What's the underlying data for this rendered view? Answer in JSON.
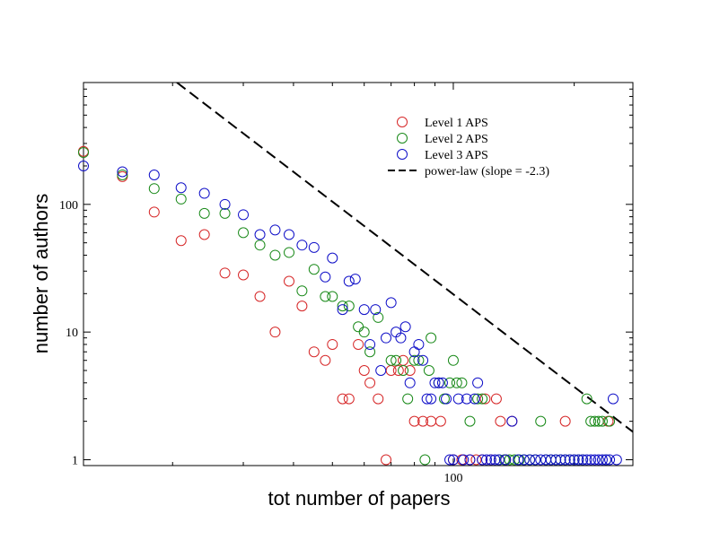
{
  "chart_data": {
    "type": "scatter",
    "xlabel": "tot number of papers",
    "ylabel": "number of authors",
    "xscale": "log",
    "yscale": "log",
    "xlim": [
      12,
      280
    ],
    "ylim": [
      0.9,
      900
    ],
    "xticks": [
      {
        "value": 100,
        "label": "100"
      }
    ],
    "yticks": [
      {
        "value": 1,
        "label": "1"
      },
      {
        "value": 10,
        "label": "10"
      },
      {
        "value": 100,
        "label": "100"
      }
    ],
    "legend_position": "top-right",
    "series": [
      {
        "name": "Level 1 APS",
        "color": "#d62728",
        "points": [
          [
            12,
            260
          ],
          [
            15,
            165
          ],
          [
            18,
            87
          ],
          [
            21,
            52
          ],
          [
            24,
            58
          ],
          [
            27,
            29
          ],
          [
            30,
            28
          ],
          [
            33,
            19
          ],
          [
            36,
            10
          ],
          [
            39,
            25
          ],
          [
            42,
            16
          ],
          [
            45,
            7
          ],
          [
            48,
            6
          ],
          [
            50,
            8
          ],
          [
            53,
            3
          ],
          [
            55,
            3
          ],
          [
            58,
            8
          ],
          [
            60,
            5
          ],
          [
            62,
            4
          ],
          [
            65,
            3
          ],
          [
            68,
            1
          ],
          [
            70,
            5
          ],
          [
            73,
            5
          ],
          [
            75,
            6
          ],
          [
            78,
            5
          ],
          [
            80,
            2
          ],
          [
            84,
            2
          ],
          [
            88,
            2
          ],
          [
            93,
            2
          ],
          [
            100,
            1
          ],
          [
            105,
            1
          ],
          [
            110,
            1
          ],
          [
            114,
            1
          ],
          [
            118,
            1
          ],
          [
            120,
            3
          ],
          [
            124,
            1
          ],
          [
            128,
            3
          ],
          [
            131,
            2
          ],
          [
            135,
            1
          ],
          [
            140,
            2
          ],
          [
            190,
            2
          ],
          [
            243,
            2
          ]
        ]
      },
      {
        "name": "Level 2 APS",
        "color": "#1a8a1a",
        "points": [
          [
            12,
            255
          ],
          [
            15,
            170
          ],
          [
            18,
            133
          ],
          [
            21,
            110
          ],
          [
            24,
            85
          ],
          [
            27,
            85
          ],
          [
            30,
            60
          ],
          [
            33,
            48
          ],
          [
            36,
            40
          ],
          [
            39,
            42
          ],
          [
            42,
            21
          ],
          [
            45,
            31
          ],
          [
            48,
            19
          ],
          [
            50,
            19
          ],
          [
            53,
            16
          ],
          [
            55,
            16
          ],
          [
            58,
            11
          ],
          [
            60,
            10
          ],
          [
            62,
            7
          ],
          [
            65,
            13
          ],
          [
            70,
            6
          ],
          [
            72,
            6
          ],
          [
            75,
            5
          ],
          [
            77,
            3
          ],
          [
            80,
            6
          ],
          [
            82,
            6
          ],
          [
            85,
            1
          ],
          [
            87,
            5
          ],
          [
            88,
            9
          ],
          [
            92,
            4
          ],
          [
            95,
            3
          ],
          [
            98,
            4
          ],
          [
            100,
            6
          ],
          [
            102,
            4
          ],
          [
            105,
            4
          ],
          [
            110,
            2
          ],
          [
            115,
            3
          ],
          [
            118,
            3
          ],
          [
            130,
            1
          ],
          [
            134,
            1
          ],
          [
            138,
            1
          ],
          [
            142,
            1
          ],
          [
            146,
            1
          ],
          [
            150,
            1
          ],
          [
            155,
            1
          ],
          [
            160,
            1
          ],
          [
            165,
            2
          ],
          [
            170,
            1
          ],
          [
            175,
            1
          ],
          [
            180,
            1
          ],
          [
            185,
            1
          ],
          [
            190,
            1
          ],
          [
            195,
            1
          ],
          [
            200,
            1
          ],
          [
            205,
            1
          ],
          [
            210,
            1
          ],
          [
            215,
            3
          ],
          [
            220,
            2
          ],
          [
            225,
            2
          ],
          [
            230,
            2
          ],
          [
            235,
            2
          ],
          [
            240,
            1
          ],
          [
            245,
            2
          ]
        ]
      },
      {
        "name": "Level 3 APS",
        "color": "#1010c8",
        "points": [
          [
            12,
            200
          ],
          [
            15,
            180
          ],
          [
            18,
            170
          ],
          [
            21,
            135
          ],
          [
            24,
            122
          ],
          [
            27,
            100
          ],
          [
            30,
            83
          ],
          [
            33,
            58
          ],
          [
            36,
            63
          ],
          [
            39,
            58
          ],
          [
            42,
            48
          ],
          [
            45,
            46
          ],
          [
            48,
            27
          ],
          [
            50,
            38
          ],
          [
            53,
            15
          ],
          [
            55,
            25
          ],
          [
            57,
            26
          ],
          [
            60,
            15
          ],
          [
            62,
            8
          ],
          [
            64,
            15
          ],
          [
            66,
            5
          ],
          [
            68,
            9
          ],
          [
            70,
            17
          ],
          [
            72,
            10
          ],
          [
            74,
            9
          ],
          [
            76,
            11
          ],
          [
            78,
            4
          ],
          [
            80,
            7
          ],
          [
            82,
            8
          ],
          [
            84,
            6
          ],
          [
            86,
            3
          ],
          [
            88,
            3
          ],
          [
            90,
            4
          ],
          [
            92,
            4
          ],
          [
            94,
            4
          ],
          [
            96,
            3
          ],
          [
            98,
            1
          ],
          [
            100,
            1
          ],
          [
            103,
            3
          ],
          [
            106,
            1
          ],
          [
            108,
            3
          ],
          [
            110,
            1
          ],
          [
            113,
            3
          ],
          [
            115,
            4
          ],
          [
            118,
            1
          ],
          [
            121,
            1
          ],
          [
            124,
            1
          ],
          [
            127,
            1
          ],
          [
            130,
            1
          ],
          [
            135,
            1
          ],
          [
            140,
            2
          ],
          [
            145,
            1
          ],
          [
            150,
            1
          ],
          [
            155,
            1
          ],
          [
            160,
            1
          ],
          [
            165,
            1
          ],
          [
            170,
            1
          ],
          [
            175,
            1
          ],
          [
            180,
            1
          ],
          [
            185,
            1
          ],
          [
            190,
            1
          ],
          [
            195,
            1
          ],
          [
            200,
            1
          ],
          [
            205,
            1
          ],
          [
            210,
            1
          ],
          [
            215,
            1
          ],
          [
            220,
            1
          ],
          [
            225,
            1
          ],
          [
            230,
            1
          ],
          [
            235,
            1
          ],
          [
            240,
            1
          ],
          [
            245,
            1
          ],
          [
            250,
            3
          ],
          [
            255,
            1
          ]
        ]
      }
    ],
    "reference_line": {
      "name": "power-law (slope = -2.3)",
      "style": "dashed",
      "color": "#000000",
      "slope": -2.3,
      "points": [
        [
          20.5,
          900
        ],
        [
          300,
          1.4
        ]
      ]
    }
  }
}
